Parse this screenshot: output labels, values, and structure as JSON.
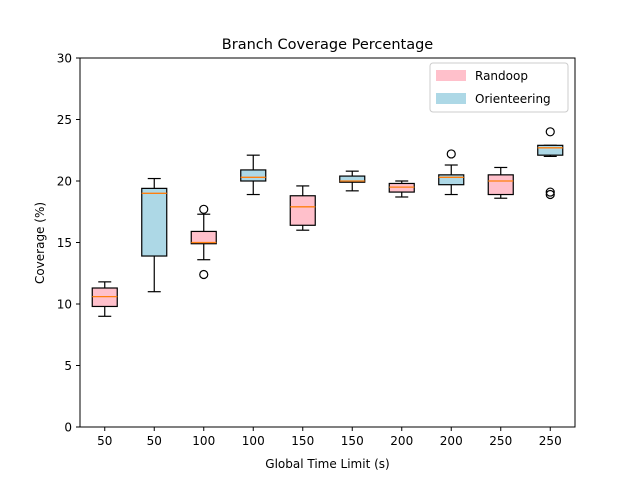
{
  "chart_data": {
    "type": "box",
    "title": "Branch Coverage Percentage",
    "xlabel": "Global Time Limit (s)",
    "ylabel": "Coverage (%)",
    "ylim": [
      0,
      30
    ],
    "yticks": [
      0,
      5,
      10,
      15,
      20,
      25,
      30
    ],
    "grid": false,
    "legend_position": "top-right",
    "categories": [
      "50",
      "50",
      "100",
      "100",
      "150",
      "150",
      "200",
      "200",
      "250",
      "250"
    ],
    "legend": [
      {
        "label": "Randoop",
        "color": "#ffc0cb"
      },
      {
        "label": "Orienteering",
        "color": "#add8e6"
      }
    ],
    "median_color": "#ff7f0e",
    "boxes": [
      {
        "series": "Randoop",
        "whisker_low": 9.0,
        "q1": 9.8,
        "median": 10.6,
        "q3": 11.3,
        "whisker_high": 11.8,
        "outliers": []
      },
      {
        "series": "Orienteering",
        "whisker_low": 11.0,
        "q1": 13.9,
        "median": 19.0,
        "q3": 19.4,
        "whisker_high": 20.2,
        "outliers": []
      },
      {
        "series": "Randoop",
        "whisker_low": 13.6,
        "q1": 14.9,
        "median": 15.0,
        "q3": 15.9,
        "whisker_high": 17.3,
        "outliers": [
          12.4,
          17.7
        ]
      },
      {
        "series": "Orienteering",
        "whisker_low": 18.9,
        "q1": 20.0,
        "median": 20.3,
        "q3": 20.9,
        "whisker_high": 22.1,
        "outliers": []
      },
      {
        "series": "Randoop",
        "whisker_low": 16.0,
        "q1": 16.4,
        "median": 17.9,
        "q3": 18.8,
        "whisker_high": 19.6,
        "outliers": []
      },
      {
        "series": "Orienteering",
        "whisker_low": 19.2,
        "q1": 19.9,
        "median": 20.0,
        "q3": 20.4,
        "whisker_high": 20.8,
        "outliers": []
      },
      {
        "series": "Randoop",
        "whisker_low": 18.7,
        "q1": 19.1,
        "median": 19.5,
        "q3": 19.8,
        "whisker_high": 20.0,
        "outliers": []
      },
      {
        "series": "Orienteering",
        "whisker_low": 18.9,
        "q1": 19.7,
        "median": 20.3,
        "q3": 20.5,
        "whisker_high": 21.3,
        "outliers": [
          22.2
        ]
      },
      {
        "series": "Randoop",
        "whisker_low": 18.6,
        "q1": 18.9,
        "median": 20.0,
        "q3": 20.5,
        "whisker_high": 21.1,
        "outliers": []
      },
      {
        "series": "Orienteering",
        "whisker_low": 22.0,
        "q1": 22.1,
        "median": 22.7,
        "q3": 22.9,
        "whisker_high": 22.9,
        "outliers": [
          24.0,
          19.1,
          18.9
        ]
      }
    ]
  }
}
